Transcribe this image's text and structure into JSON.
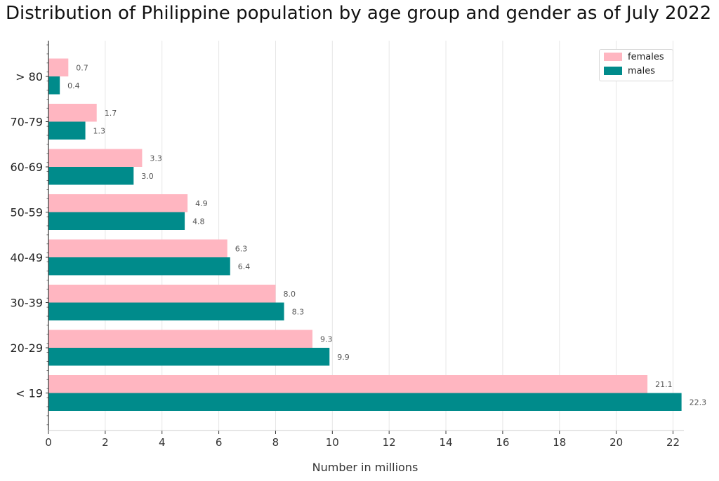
{
  "chart_data": {
    "type": "bar",
    "orientation": "horizontal",
    "title": "Distribution of Philippine population by age group and gender as of July 2022",
    "xlabel": "Number in millions",
    "ylabel": "",
    "xlim": [
      0,
      22.5
    ],
    "xticks": [
      0,
      2,
      4,
      6,
      8,
      10,
      12,
      14,
      16,
      18,
      20,
      22
    ],
    "grid": "vertical",
    "legend_position": "top-right",
    "categories": [
      "< 19",
      "20-29",
      "30-39",
      "40-49",
      "50-59",
      "60-69",
      "70-79",
      "> 80"
    ],
    "series": [
      {
        "name": "females",
        "color": "#ffb6c1",
        "values": [
          21.1,
          9.3,
          8.0,
          6.3,
          4.9,
          3.3,
          1.7,
          0.7
        ],
        "labels": [
          "21.1",
          "9.3",
          "8.0",
          "6.3",
          "4.9",
          "3.3",
          "1.7",
          "0.7"
        ]
      },
      {
        "name": "males",
        "color": "#008b8b",
        "values": [
          22.3,
          9.9,
          8.3,
          6.4,
          4.8,
          3.0,
          1.3,
          0.4
        ],
        "labels": [
          "22.3",
          "9.9",
          "8.3",
          "6.4",
          "4.8",
          "3.0",
          "1.3",
          "0.4"
        ]
      }
    ]
  }
}
